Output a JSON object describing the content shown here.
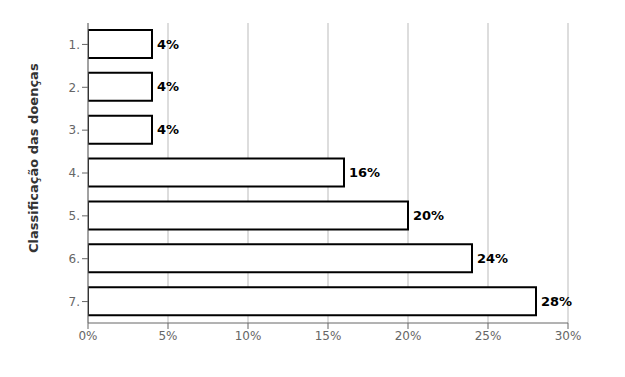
{
  "chart_data": {
    "type": "bar",
    "orientation": "horizontal",
    "ylabel": "Classificação das doenças",
    "categories": [
      "1.",
      "2.",
      "3.",
      "4.",
      "5.",
      "6.",
      "7."
    ],
    "values": [
      4,
      4,
      4,
      16,
      20,
      24,
      28
    ],
    "value_labels": [
      "4%",
      "4%",
      "4%",
      "16%",
      "20%",
      "24%",
      "28%"
    ],
    "data_labels": true,
    "color": "#ffffff",
    "xlim": [
      0,
      30
    ],
    "xticks": [
      {
        "value": 0,
        "label": "0%"
      },
      {
        "value": 5,
        "label": "5%"
      },
      {
        "value": 10,
        "label": "10%"
      },
      {
        "value": 15,
        "label": "15%"
      },
      {
        "value": 20,
        "label": "20%"
      },
      {
        "value": 25,
        "label": "25%"
      },
      {
        "value": 30,
        "label": "30%"
      }
    ],
    "grid": true
  }
}
